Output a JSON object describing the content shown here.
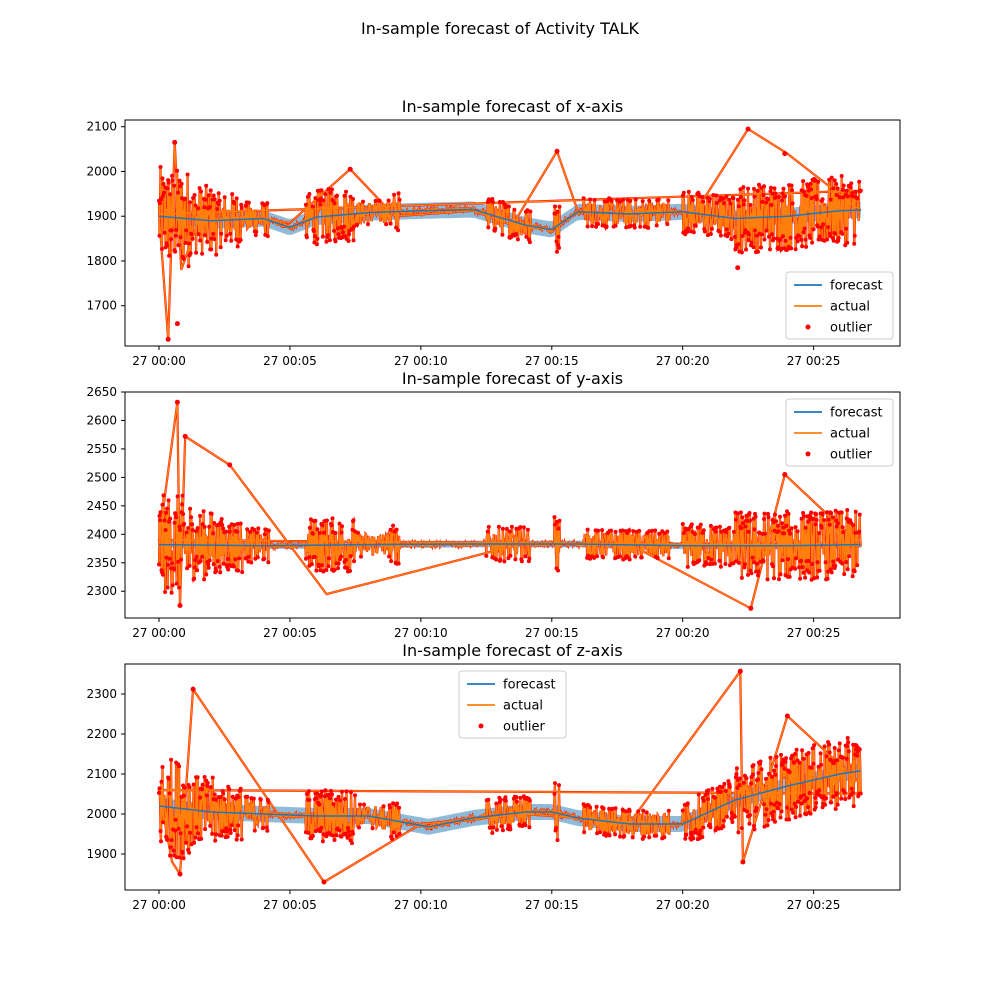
{
  "figure": {
    "title": "In-sample forecast of Activity TALK"
  },
  "colors": {
    "forecast": "#1f77b4",
    "band": "#8fbbd9",
    "actual": "#ff7f0e",
    "outlier": "#ff0000"
  },
  "chart_data": [
    {
      "type": "line",
      "title": "In-sample forecast of x-axis",
      "xlabel": "",
      "ylabel": "",
      "xlim_minutes": [
        -1.3,
        28.3
      ],
      "ylim": [
        1610,
        2115
      ],
      "x_ticks": [
        "27 00:00",
        "27 00:05",
        "27 00:10",
        "27 00:15",
        "27 00:20",
        "27 00:25"
      ],
      "y_ticks": [
        1700,
        1800,
        1900,
        2000,
        2100
      ],
      "legend": "lower-right",
      "series": [
        {
          "name": "forecast",
          "style": "line+band",
          "x_minutes": [
            0,
            2,
            4,
            5,
            6,
            8,
            10,
            12,
            14,
            15,
            16,
            18,
            20,
            22,
            24,
            26,
            26.8
          ],
          "values": [
            1900,
            1890,
            1895,
            1875,
            1898,
            1908,
            1912,
            1915,
            1880,
            1870,
            1910,
            1905,
            1910,
            1895,
            1900,
            1912,
            1914
          ],
          "band_halfwidth": 18
        },
        {
          "name": "actual",
          "style": "line",
          "x_minutes": [
            0,
            0.35,
            0.6,
            0.85,
            1.5,
            3.5,
            5,
            7.3,
            9,
            12,
            13.5,
            15.2,
            16,
            18,
            20.5,
            22.5,
            24,
            26.8
          ],
          "values": [
            1905,
            1625,
            2065,
            1780,
            1890,
            1900,
            1885,
            2005,
            1900,
            1912,
            1880,
            2045,
            1910,
            1905,
            1910,
            2095,
            2040,
            1912
          ]
        },
        {
          "name": "outlier",
          "style": "scatter",
          "x_minutes": [
            0.35,
            0.7,
            0.6,
            22.5,
            23.9,
            15.2,
            7.3,
            22.1
          ],
          "values": [
            1625,
            1660,
            2065,
            2095,
            2040,
            2045,
            2005,
            1785
          ]
        }
      ]
    },
    {
      "type": "line",
      "title": "In-sample forecast of y-axis",
      "xlabel": "",
      "ylabel": "",
      "xlim_minutes": [
        -1.3,
        28.3
      ],
      "ylim": [
        2253,
        2650
      ],
      "x_ticks": [
        "27 00:00",
        "27 00:05",
        "27 00:10",
        "27 00:15",
        "27 00:20",
        "27 00:25"
      ],
      "y_ticks": [
        2300,
        2350,
        2400,
        2450,
        2500,
        2550,
        2600,
        2650
      ],
      "legend": "upper-right",
      "series": [
        {
          "name": "forecast",
          "style": "line+band",
          "x_minutes": [
            0,
            4,
            8,
            12,
            16,
            20,
            24,
            26.8
          ],
          "values": [
            2382,
            2380,
            2382,
            2383,
            2383,
            2380,
            2380,
            2382
          ],
          "band_halfwidth": 6
        },
        {
          "name": "actual",
          "style": "line",
          "x_minutes": [
            0,
            0.7,
            0.8,
            1.0,
            2.7,
            6.4,
            14,
            18,
            22.6,
            23.9,
            26.8
          ],
          "values": [
            2390,
            2632,
            2275,
            2572,
            2522,
            2295,
            2385,
            2382,
            2270,
            2505,
            2380
          ]
        },
        {
          "name": "outlier",
          "style": "scatter",
          "x_minutes": [
            0.7,
            1.0,
            2.7,
            23.9,
            22.6,
            0.8
          ],
          "values": [
            2632,
            2572,
            2522,
            2505,
            2270,
            2275
          ]
        }
      ]
    },
    {
      "type": "line",
      "title": "In-sample forecast of z-axis",
      "xlabel": "",
      "ylabel": "",
      "xlim_minutes": [
        -1.3,
        28.3
      ],
      "ylim": [
        1810,
        2375
      ],
      "x_ticks": [
        "27 00:00",
        "27 00:05",
        "27 00:10",
        "27 00:15",
        "27 00:20",
        "27 00:25"
      ],
      "y_ticks": [
        1900,
        2000,
        2100,
        2200,
        2300
      ],
      "legend": "upper-center",
      "series": [
        {
          "name": "forecast",
          "style": "line+band",
          "x_minutes": [
            0,
            2,
            4,
            6,
            8,
            10.3,
            12,
            14,
            15,
            16,
            18,
            20,
            22,
            24,
            26,
            26.8
          ],
          "values": [
            2020,
            2005,
            2000,
            1995,
            1995,
            1968,
            1990,
            2005,
            2005,
            1990,
            1975,
            1975,
            2035,
            2070,
            2100,
            2108
          ],
          "band_halfwidth": 20
        },
        {
          "name": "actual",
          "style": "line",
          "x_minutes": [
            0,
            0.5,
            0.8,
            1.3,
            6.3,
            10,
            14,
            18,
            22.2,
            22.3,
            24,
            26.8
          ],
          "values": [
            2060,
            1880,
            1850,
            2312,
            1830,
            1975,
            2000,
            1980,
            2357,
            1880,
            2245,
            2075
          ]
        },
        {
          "name": "outlier",
          "style": "scatter",
          "x_minutes": [
            1.3,
            22.2,
            6.3,
            0.8,
            22.3,
            24
          ],
          "values": [
            2312,
            2357,
            1830,
            1850,
            1880,
            2245
          ]
        }
      ]
    }
  ]
}
